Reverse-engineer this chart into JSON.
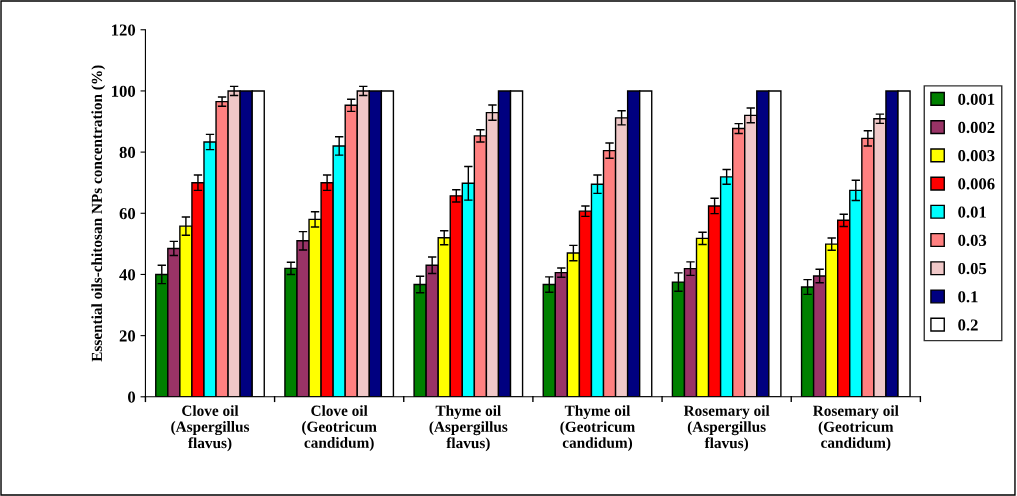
{
  "chart_data": {
    "type": "bar",
    "ylabel": "Essential oils-chitosan NPs concentration (%)",
    "categories": [
      "Clove oil\n(Aspergillus\nflavus)",
      "Clove oil\n(Geotricum\ncandidum)",
      "Thyme oil\n(Aspergillus\nflavus)",
      "Thyme oil\n(Geotricum\ncandidum)",
      "Rosemary oil\n(Aspergillus\nflavus)",
      "Rosemary oil\n(Geotricum\ncandidum)"
    ],
    "ylim": [
      0,
      120
    ],
    "yticks": [
      0,
      20,
      40,
      60,
      80,
      100,
      120
    ],
    "grid": false,
    "legend": "right",
    "series": [
      {
        "name": "0.001",
        "color": "#008000",
        "values": [
          40,
          42,
          36.7,
          36.7,
          37.5,
          35.9
        ],
        "errors": [
          3,
          2,
          2.7,
          2.5,
          3,
          2.4
        ]
      },
      {
        "name": "0.002",
        "color": "#993366",
        "values": [
          48.5,
          51,
          43,
          40.6,
          41.9,
          39.5
        ],
        "errors": [
          2.3,
          3,
          2.7,
          1.5,
          2.2,
          2.2
        ]
      },
      {
        "name": "0.003",
        "color": "#ffff00",
        "values": [
          55.8,
          58,
          52,
          47,
          51.8,
          49.9
        ],
        "errors": [
          3,
          2.5,
          2.3,
          2.5,
          2,
          2
        ]
      },
      {
        "name": "0.006",
        "color": "#ff0000",
        "values": [
          70,
          70,
          65.7,
          60.7,
          62.4,
          57.7
        ],
        "errors": [
          2.5,
          2.5,
          2,
          1.7,
          2.5,
          2
        ]
      },
      {
        "name": "0.01",
        "color": "#00ffff",
        "values": [
          83.3,
          82,
          69.8,
          69.5,
          71.9,
          67.5
        ],
        "errors": [
          2.5,
          3,
          5.5,
          3,
          2.4,
          3.3
        ]
      },
      {
        "name": "0.03",
        "color": "#ff8080",
        "values": [
          96.5,
          95.3,
          85.3,
          80.5,
          87.7,
          84.5
        ],
        "errors": [
          1.5,
          2,
          2,
          2.5,
          1.6,
          2.5
        ]
      },
      {
        "name": "0.05",
        "color": "#f0c8c8",
        "values": [
          100,
          100,
          92.9,
          91.2,
          92,
          90.9
        ],
        "errors": [
          1.5,
          1.5,
          2.5,
          2.3,
          2.4,
          1.5
        ]
      },
      {
        "name": "0.1",
        "color": "#000080",
        "values": [
          100,
          100,
          100,
          100,
          100,
          100
        ]
      },
      {
        "name": "0.2",
        "color": "#ffffff",
        "values": [
          100,
          100,
          100,
          100,
          100,
          100
        ]
      }
    ]
  }
}
